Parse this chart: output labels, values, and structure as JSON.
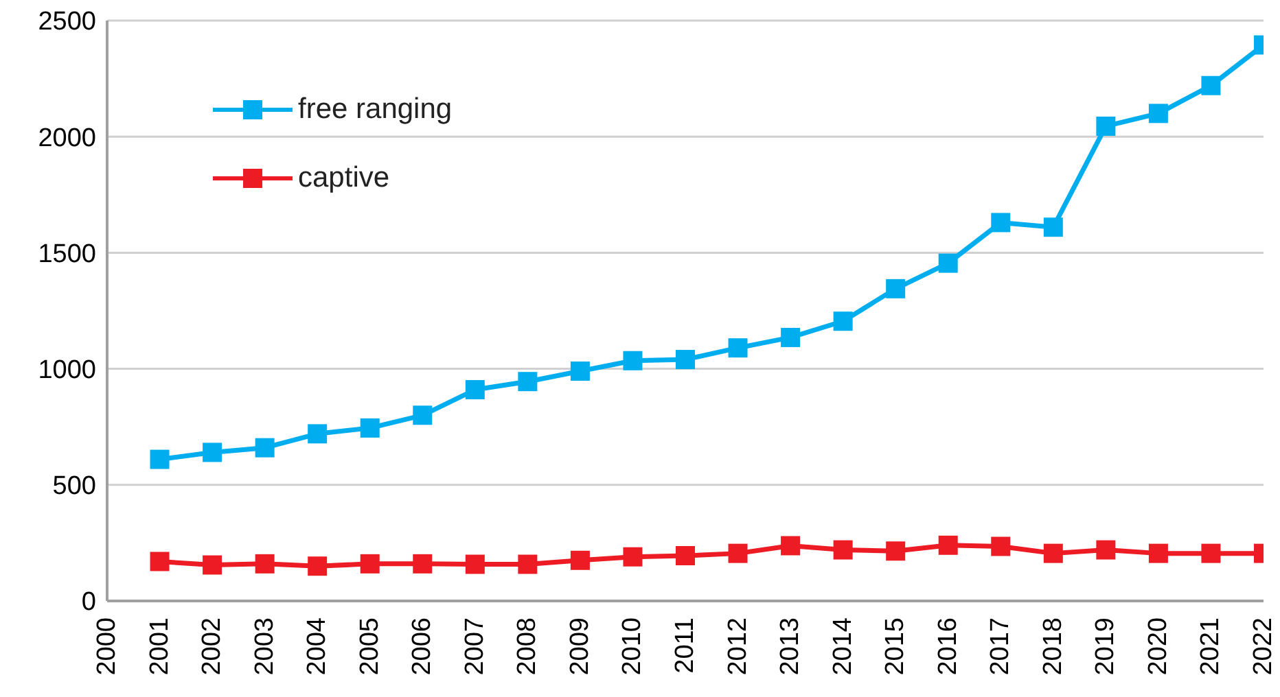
{
  "chart_data": {
    "type": "line",
    "x": [
      2001,
      2002,
      2003,
      2004,
      2005,
      2006,
      2007,
      2008,
      2009,
      2010,
      2011,
      2012,
      2013,
      2014,
      2015,
      2016,
      2017,
      2018,
      2019,
      2020,
      2021,
      2022
    ],
    "series": [
      {
        "name": "free ranging",
        "color": "#00aeef",
        "values": [
          610,
          640,
          660,
          720,
          745,
          800,
          910,
          945,
          990,
          1035,
          1040,
          1090,
          1135,
          1205,
          1345,
          1455,
          1630,
          1610,
          2045,
          2100,
          2220,
          2395
        ]
      },
      {
        "name": "captive",
        "color": "#ed1c24",
        "values": [
          170,
          155,
          160,
          150,
          160,
          160,
          158,
          158,
          175,
          190,
          195,
          205,
          238,
          220,
          215,
          240,
          235,
          205,
          220,
          205,
          205,
          205
        ]
      }
    ],
    "xlim": [
      2000,
      2022
    ],
    "xticks": [
      2000,
      2001,
      2002,
      2003,
      2004,
      2005,
      2006,
      2007,
      2008,
      2009,
      2010,
      2011,
      2012,
      2013,
      2014,
      2015,
      2016,
      2017,
      2018,
      2019,
      2020,
      2021,
      2022
    ],
    "ylim": [
      0,
      2500
    ],
    "yticks": [
      0,
      500,
      1000,
      1500,
      2000,
      2500
    ],
    "grid": "y",
    "legend": "top left",
    "marker": "square",
    "line_style": "solid"
  }
}
